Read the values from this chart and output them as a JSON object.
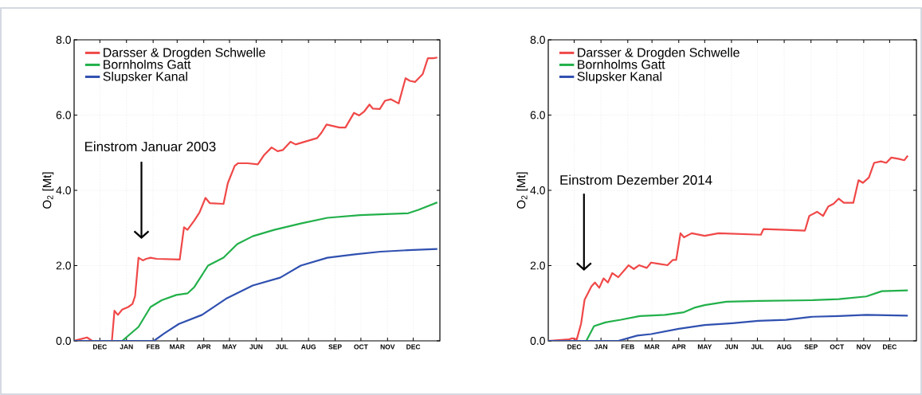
{
  "chart_data": [
    {
      "type": "line",
      "ylabel": "O$_{2}$ [Mt]",
      "xlim": [
        "2002-11-01",
        "2004-01-01"
      ],
      "ylim": [
        0,
        8
      ],
      "xticks": [
        {
          "value": "2002-12-01",
          "label": "DEC"
        },
        {
          "value": "2003-01-01",
          "label": "JAN"
        },
        {
          "value": "2003-02-01",
          "label": "FEB"
        },
        {
          "value": "2003-03-01",
          "label": "MAR"
        },
        {
          "value": "2003-04-01",
          "label": "APR"
        },
        {
          "value": "2003-05-01",
          "label": "MAY"
        },
        {
          "value": "2003-06-01",
          "label": "JUN"
        },
        {
          "value": "2003-07-01",
          "label": "JUL"
        },
        {
          "value": "2003-08-01",
          "label": "AUG"
        },
        {
          "value": "2003-09-01",
          "label": "SEP"
        },
        {
          "value": "2003-10-01",
          "label": "OCT"
        },
        {
          "value": "2003-11-01",
          "label": "NOV"
        },
        {
          "value": "2003-12-01",
          "label": "DEC"
        }
      ],
      "yticks": [
        {
          "value": 0,
          "label": "0.0"
        },
        {
          "value": 2,
          "label": "2.0"
        },
        {
          "value": 4,
          "label": "4.0"
        },
        {
          "value": 6,
          "label": "6.0"
        },
        {
          "value": 8,
          "label": "8.0"
        }
      ],
      "grid": true,
      "legend": "top left",
      "annotations": [
        "Einstrom Januar 2003"
      ],
      "series": [
        {
          "name": "Darsser & Drogden Schwelle",
          "color": "#f04848",
          "x": [
            "2002-11-01",
            "2002-11-16",
            "2002-11-22",
            "2002-12-15",
            "2002-12-18",
            "2002-12-22",
            "2002-12-27",
            "2003-01-03",
            "2003-01-08",
            "2003-01-11",
            "2003-01-15",
            "2003-01-20",
            "2003-01-24",
            "2003-01-29",
            "2003-02-05",
            "2003-03-04",
            "2003-03-09",
            "2003-03-13",
            "2003-03-21",
            "2003-03-27",
            "2003-04-03",
            "2003-04-08",
            "2003-04-24",
            "2003-04-29",
            "2003-05-07",
            "2003-05-11",
            "2003-05-22",
            "2003-06-03",
            "2003-06-10",
            "2003-06-19",
            "2003-06-26",
            "2003-07-02",
            "2003-07-11",
            "2003-07-17",
            "2003-08-11",
            "2003-08-16",
            "2003-08-22",
            "2003-09-06",
            "2003-09-13",
            "2003-09-23",
            "2003-09-29",
            "2003-10-05",
            "2003-10-11",
            "2003-10-15",
            "2003-10-23",
            "2003-10-29",
            "2003-11-05",
            "2003-11-14",
            "2003-11-22",
            "2003-11-27",
            "2003-12-03",
            "2003-12-12",
            "2003-12-18",
            "2003-12-24",
            "2003-12-29"
          ],
          "values": [
            0,
            0.09,
            0,
            0,
            0.8,
            0.69,
            0.83,
            0.9,
            0.98,
            1.19,
            2.21,
            2.14,
            2.18,
            2.21,
            2.18,
            2.16,
            3.02,
            2.95,
            3.2,
            3.41,
            3.8,
            3.66,
            3.64,
            4.19,
            4.65,
            4.72,
            4.72,
            4.69,
            4.93,
            5.14,
            5.04,
            5.07,
            5.29,
            5.22,
            5.39,
            5.53,
            5.75,
            5.67,
            5.67,
            6.06,
            5.99,
            6.1,
            6.28,
            6.17,
            6.16,
            6.38,
            6.42,
            6.31,
            6.98,
            6.91,
            6.88,
            7.09,
            7.51,
            7.51,
            7.53
          ]
        },
        {
          "name": "Bornholms Gatt",
          "color": "#22b04a",
          "x": [
            "2002-11-01",
            "2002-12-27",
            "2003-01-15",
            "2003-01-29",
            "2003-02-11",
            "2003-02-28",
            "2003-03-13",
            "2003-03-21",
            "2003-04-06",
            "2003-04-24",
            "2003-05-10",
            "2003-05-28",
            "2003-06-22",
            "2003-07-23",
            "2003-08-23",
            "2003-09-30",
            "2003-11-25",
            "2003-12-07",
            "2003-12-29"
          ],
          "values": [
            0,
            0,
            0.37,
            0.9,
            1.08,
            1.22,
            1.26,
            1.43,
            2.0,
            2.21,
            2.57,
            2.78,
            2.95,
            3.12,
            3.27,
            3.34,
            3.39,
            3.48,
            3.68
          ]
        },
        {
          "name": "Slupsker Kanal",
          "color": "#3050b0",
          "x": [
            "2002-11-01",
            "2003-02-02",
            "2003-02-14",
            "2003-03-03",
            "2003-03-30",
            "2003-04-27",
            "2003-05-28",
            "2003-06-29",
            "2003-07-23",
            "2003-08-23",
            "2003-09-24",
            "2003-10-24",
            "2003-11-25",
            "2003-12-29"
          ],
          "values": [
            0,
            0,
            0.2,
            0.45,
            0.69,
            1.12,
            1.47,
            1.68,
            2.0,
            2.21,
            2.3,
            2.37,
            2.41,
            2.44
          ]
        }
      ]
    },
    {
      "type": "line",
      "ylabel": "O$_{2}$ [Mt]",
      "xlim": [
        "2014-11-01",
        "2016-01-01"
      ],
      "ylim": [
        0,
        8
      ],
      "xticks": [
        {
          "value": "2014-12-01",
          "label": "DEC"
        },
        {
          "value": "2015-01-01",
          "label": "JAN"
        },
        {
          "value": "2015-02-01",
          "label": "FEB"
        },
        {
          "value": "2015-03-01",
          "label": "MAR"
        },
        {
          "value": "2015-04-01",
          "label": "APR"
        },
        {
          "value": "2015-05-01",
          "label": "MAY"
        },
        {
          "value": "2015-06-01",
          "label": "JUN"
        },
        {
          "value": "2015-07-01",
          "label": "JUL"
        },
        {
          "value": "2015-08-01",
          "label": "AUG"
        },
        {
          "value": "2015-09-01",
          "label": "SEP"
        },
        {
          "value": "2015-10-01",
          "label": "OCT"
        },
        {
          "value": "2015-11-01",
          "label": "NOV"
        },
        {
          "value": "2015-12-01",
          "label": "DEC"
        }
      ],
      "yticks": [
        {
          "value": 0,
          "label": "0.0"
        },
        {
          "value": 2,
          "label": "2.0"
        },
        {
          "value": 4,
          "label": "4.0"
        },
        {
          "value": 6,
          "label": "6.0"
        },
        {
          "value": 8,
          "label": "8.0"
        }
      ],
      "grid": true,
      "legend": "top left",
      "annotations": [
        "Einstrom Dezember 2014"
      ],
      "series": [
        {
          "name": "Darsser & Drogden Schwelle",
          "color": "#f04848",
          "x": [
            "2014-11-01",
            "2014-11-25",
            "2014-11-29",
            "2014-12-04",
            "2014-12-09",
            "2014-12-13",
            "2014-12-21",
            "2014-12-25",
            "2014-12-30",
            "2015-01-04",
            "2015-01-09",
            "2015-01-14",
            "2015-01-21",
            "2015-02-02",
            "2015-02-08",
            "2015-02-14",
            "2015-02-23",
            "2015-02-28",
            "2015-03-08",
            "2015-03-19",
            "2015-03-25",
            "2015-03-29",
            "2015-04-03",
            "2015-04-07",
            "2015-04-16",
            "2015-05-01",
            "2015-05-17",
            "2015-07-05",
            "2015-07-08",
            "2015-08-03",
            "2015-08-25",
            "2015-08-30",
            "2015-09-08",
            "2015-09-15",
            "2015-09-21",
            "2015-09-27",
            "2015-10-03",
            "2015-10-09",
            "2015-10-20",
            "2015-10-26",
            "2015-10-31",
            "2015-11-07",
            "2015-11-13",
            "2015-11-21",
            "2015-11-27",
            "2015-12-03",
            "2015-12-11",
            "2015-12-18",
            "2015-12-22"
          ],
          "values": [
            0,
            0.04,
            0.07,
            0.04,
            0.46,
            1.09,
            1.45,
            1.55,
            1.41,
            1.66,
            1.55,
            1.8,
            1.69,
            2.01,
            1.91,
            2.01,
            1.94,
            2.08,
            2.05,
            2.01,
            2.15,
            2.15,
            2.86,
            2.75,
            2.86,
            2.79,
            2.86,
            2.82,
            2.97,
            2.95,
            2.93,
            3.32,
            3.43,
            3.32,
            3.57,
            3.64,
            3.78,
            3.67,
            3.67,
            4.27,
            4.2,
            4.34,
            4.73,
            4.77,
            4.73,
            4.87,
            4.84,
            4.8,
            4.92
          ]
        },
        {
          "name": "Bornholms Gatt",
          "color": "#22b04a",
          "x": [
            "2014-11-01",
            "2014-12-15",
            "2014-12-24",
            "2015-01-06",
            "2015-01-24",
            "2015-02-15",
            "2015-03-16",
            "2015-04-07",
            "2015-04-19",
            "2015-05-01",
            "2015-05-26",
            "2015-07-02",
            "2015-09-03",
            "2015-10-03",
            "2015-11-04",
            "2015-11-22",
            "2015-12-22"
          ],
          "values": [
            0,
            0,
            0.39,
            0.49,
            0.56,
            0.66,
            0.69,
            0.76,
            0.88,
            0.95,
            1.04,
            1.06,
            1.08,
            1.11,
            1.18,
            1.32,
            1.34
          ]
        },
        {
          "name": "Slupsker Kanal",
          "color": "#3050b0",
          "x": [
            "2014-11-01",
            "2015-01-21",
            "2015-02-12",
            "2015-02-28",
            "2015-04-01",
            "2015-05-01",
            "2015-06-02",
            "2015-07-02",
            "2015-08-03",
            "2015-09-03",
            "2015-10-03",
            "2015-11-04",
            "2015-12-22"
          ],
          "values": [
            0,
            0,
            0.14,
            0.18,
            0.32,
            0.42,
            0.47,
            0.53,
            0.56,
            0.64,
            0.66,
            0.69,
            0.67
          ]
        }
      ]
    }
  ]
}
